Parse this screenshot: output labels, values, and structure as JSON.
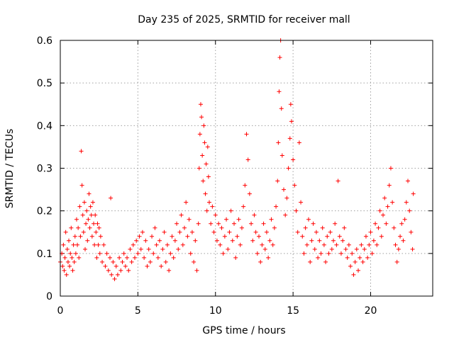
{
  "chart_data": {
    "type": "scatter",
    "title": "Day 235 of 2025, SRMTID for receiver mall",
    "xlabel": "GPS time / hours",
    "ylabel": "SRMTID / TECUs",
    "xlim": [
      0,
      24
    ],
    "ylim": [
      0,
      0.6
    ],
    "xticks": [
      0,
      5,
      10,
      15,
      20
    ],
    "yticks": [
      0,
      0.1,
      0.2,
      0.3,
      0.4,
      0.5,
      0.6
    ],
    "xtick_labels": [
      "0",
      "5",
      "10",
      "15",
      "20"
    ],
    "ytick_labels": [
      "0",
      "0.1",
      "0.2",
      "0.3",
      "0.4",
      "0.5",
      "0.6"
    ],
    "grid": true,
    "marker": "+",
    "color": "#ff0000",
    "series": [
      {
        "name": "SRMTID",
        "points": [
          [
            0.0,
            0.08
          ],
          [
            0.1,
            0.1
          ],
          [
            0.15,
            0.07
          ],
          [
            0.2,
            0.12
          ],
          [
            0.25,
            0.06
          ],
          [
            0.3,
            0.09
          ],
          [
            0.35,
            0.15
          ],
          [
            0.4,
            0.05
          ],
          [
            0.45,
            0.11
          ],
          [
            0.5,
            0.08
          ],
          [
            0.55,
            0.13
          ],
          [
            0.6,
            0.07
          ],
          [
            0.65,
            0.1
          ],
          [
            0.7,
            0.16
          ],
          [
            0.75,
            0.09
          ],
          [
            0.8,
            0.06
          ],
          [
            0.85,
            0.12
          ],
          [
            0.9,
            0.08
          ],
          [
            0.95,
            0.14
          ],
          [
            1.0,
            0.1
          ],
          [
            1.05,
            0.18
          ],
          [
            1.1,
            0.12
          ],
          [
            1.15,
            0.16
          ],
          [
            1.2,
            0.09
          ],
          [
            1.25,
            0.21
          ],
          [
            1.3,
            0.14
          ],
          [
            1.35,
            0.34
          ],
          [
            1.4,
            0.26
          ],
          [
            1.45,
            0.19
          ],
          [
            1.5,
            0.15
          ],
          [
            1.55,
            0.22
          ],
          [
            1.6,
            0.11
          ],
          [
            1.65,
            0.17
          ],
          [
            1.7,
            0.2
          ],
          [
            1.75,
            0.13
          ],
          [
            1.8,
            0.18
          ],
          [
            1.85,
            0.24
          ],
          [
            1.9,
            0.16
          ],
          [
            1.95,
            0.21
          ],
          [
            2.0,
            0.19
          ],
          [
            2.05,
            0.14
          ],
          [
            2.1,
            0.22
          ],
          [
            2.15,
            0.17
          ],
          [
            2.2,
            0.12
          ],
          [
            2.25,
            0.19
          ],
          [
            2.3,
            0.15
          ],
          [
            2.35,
            0.09
          ],
          [
            2.4,
            0.17
          ],
          [
            2.45,
            0.12
          ],
          [
            2.5,
            0.16
          ],
          [
            2.55,
            0.1
          ],
          [
            2.6,
            0.14
          ],
          [
            2.7,
            0.08
          ],
          [
            2.8,
            0.12
          ],
          [
            2.9,
            0.07
          ],
          [
            3.0,
            0.1
          ],
          [
            3.1,
            0.06
          ],
          [
            3.2,
            0.09
          ],
          [
            3.25,
            0.23
          ],
          [
            3.3,
            0.05
          ],
          [
            3.4,
            0.08
          ],
          [
            3.5,
            0.04
          ],
          [
            3.6,
            0.07
          ],
          [
            3.7,
            0.05
          ],
          [
            3.8,
            0.09
          ],
          [
            3.9,
            0.06
          ],
          [
            4.0,
            0.08
          ],
          [
            4.1,
            0.1
          ],
          [
            4.2,
            0.07
          ],
          [
            4.3,
            0.09
          ],
          [
            4.4,
            0.06
          ],
          [
            4.5,
            0.11
          ],
          [
            4.6,
            0.08
          ],
          [
            4.7,
            0.12
          ],
          [
            4.8,
            0.09
          ],
          [
            4.9,
            0.13
          ],
          [
            5.0,
            0.1
          ],
          [
            5.1,
            0.14
          ],
          [
            5.2,
            0.11
          ],
          [
            5.3,
            0.15
          ],
          [
            5.4,
            0.09
          ],
          [
            5.5,
            0.13
          ],
          [
            5.6,
            0.07
          ],
          [
            5.7,
            0.11
          ],
          [
            5.8,
            0.08
          ],
          [
            5.9,
            0.14
          ],
          [
            6.0,
            0.1
          ],
          [
            6.1,
            0.16
          ],
          [
            6.2,
            0.12
          ],
          [
            6.3,
            0.09
          ],
          [
            6.4,
            0.13
          ],
          [
            6.5,
            0.07
          ],
          [
            6.6,
            0.11
          ],
          [
            6.7,
            0.15
          ],
          [
            6.8,
            0.08
          ],
          [
            6.9,
            0.12
          ],
          [
            7.0,
            0.06
          ],
          [
            7.1,
            0.1
          ],
          [
            7.2,
            0.14
          ],
          [
            7.3,
            0.09
          ],
          [
            7.4,
            0.13
          ],
          [
            7.5,
            0.17
          ],
          [
            7.6,
            0.11
          ],
          [
            7.7,
            0.15
          ],
          [
            7.8,
            0.19
          ],
          [
            7.9,
            0.12
          ],
          [
            8.0,
            0.16
          ],
          [
            8.1,
            0.22
          ],
          [
            8.2,
            0.14
          ],
          [
            8.3,
            0.18
          ],
          [
            8.4,
            0.1
          ],
          [
            8.5,
            0.15
          ],
          [
            8.6,
            0.08
          ],
          [
            8.7,
            0.13
          ],
          [
            8.8,
            0.06
          ],
          [
            8.9,
            0.17
          ],
          [
            8.95,
            0.3
          ],
          [
            9.0,
            0.38
          ],
          [
            9.05,
            0.45
          ],
          [
            9.1,
            0.42
          ],
          [
            9.15,
            0.33
          ],
          [
            9.2,
            0.27
          ],
          [
            9.25,
            0.4
          ],
          [
            9.3,
            0.36
          ],
          [
            9.35,
            0.24
          ],
          [
            9.4,
            0.31
          ],
          [
            9.45,
            0.2
          ],
          [
            9.5,
            0.35
          ],
          [
            9.55,
            0.28
          ],
          [
            9.6,
            0.22
          ],
          [
            9.7,
            0.17
          ],
          [
            9.8,
            0.21
          ],
          [
            9.9,
            0.15
          ],
          [
            10.0,
            0.19
          ],
          [
            10.1,
            0.13
          ],
          [
            10.2,
            0.17
          ],
          [
            10.3,
            0.12
          ],
          [
            10.4,
            0.16
          ],
          [
            10.5,
            0.1
          ],
          [
            10.6,
            0.14
          ],
          [
            10.7,
            0.18
          ],
          [
            10.8,
            0.11
          ],
          [
            10.9,
            0.15
          ],
          [
            11.0,
            0.2
          ],
          [
            11.1,
            0.13
          ],
          [
            11.2,
            0.17
          ],
          [
            11.3,
            0.09
          ],
          [
            11.4,
            0.14
          ],
          [
            11.5,
            0.18
          ],
          [
            11.6,
            0.12
          ],
          [
            11.7,
            0.16
          ],
          [
            11.8,
            0.21
          ],
          [
            11.9,
            0.26
          ],
          [
            12.0,
            0.38
          ],
          [
            12.1,
            0.32
          ],
          [
            12.2,
            0.24
          ],
          [
            12.3,
            0.17
          ],
          [
            12.4,
            0.13
          ],
          [
            12.5,
            0.19
          ],
          [
            12.6,
            0.15
          ],
          [
            12.7,
            0.1
          ],
          [
            12.8,
            0.14
          ],
          [
            12.9,
            0.08
          ],
          [
            13.0,
            0.12
          ],
          [
            13.1,
            0.17
          ],
          [
            13.2,
            0.11
          ],
          [
            13.3,
            0.15
          ],
          [
            13.4,
            0.09
          ],
          [
            13.5,
            0.13
          ],
          [
            13.6,
            0.18
          ],
          [
            13.7,
            0.12
          ],
          [
            13.8,
            0.16
          ],
          [
            13.9,
            0.21
          ],
          [
            14.0,
            0.27
          ],
          [
            14.05,
            0.36
          ],
          [
            14.1,
            0.48
          ],
          [
            14.15,
            0.56
          ],
          [
            14.2,
            0.6
          ],
          [
            14.25,
            0.44
          ],
          [
            14.3,
            0.33
          ],
          [
            14.4,
            0.25
          ],
          [
            14.5,
            0.19
          ],
          [
            14.6,
            0.23
          ],
          [
            14.7,
            0.3
          ],
          [
            14.8,
            0.37
          ],
          [
            14.85,
            0.45
          ],
          [
            14.9,
            0.41
          ],
          [
            15.0,
            0.32
          ],
          [
            15.1,
            0.26
          ],
          [
            15.2,
            0.2
          ],
          [
            15.3,
            0.15
          ],
          [
            15.4,
            0.36
          ],
          [
            15.5,
            0.22
          ],
          [
            15.6,
            0.14
          ],
          [
            15.7,
            0.1
          ],
          [
            15.8,
            0.16
          ],
          [
            15.9,
            0.12
          ],
          [
            16.0,
            0.18
          ],
          [
            16.1,
            0.08
          ],
          [
            16.2,
            0.13
          ],
          [
            16.3,
            0.17
          ],
          [
            16.4,
            0.11
          ],
          [
            16.5,
            0.15
          ],
          [
            16.6,
            0.09
          ],
          [
            16.7,
            0.13
          ],
          [
            16.8,
            0.1
          ],
          [
            16.9,
            0.16
          ],
          [
            17.0,
            0.12
          ],
          [
            17.1,
            0.08
          ],
          [
            17.2,
            0.14
          ],
          [
            17.3,
            0.1
          ],
          [
            17.4,
            0.15
          ],
          [
            17.5,
            0.11
          ],
          [
            17.6,
            0.13
          ],
          [
            17.7,
            0.17
          ],
          [
            17.8,
            0.12
          ],
          [
            17.9,
            0.27
          ],
          [
            18.0,
            0.14
          ],
          [
            18.1,
            0.1
          ],
          [
            18.2,
            0.13
          ],
          [
            18.3,
            0.16
          ],
          [
            18.4,
            0.11
          ],
          [
            18.5,
            0.09
          ],
          [
            18.6,
            0.12
          ],
          [
            18.7,
            0.07
          ],
          [
            18.8,
            0.1
          ],
          [
            18.9,
            0.05
          ],
          [
            19.0,
            0.08
          ],
          [
            19.1,
            0.11
          ],
          [
            19.2,
            0.06
          ],
          [
            19.3,
            0.09
          ],
          [
            19.4,
            0.12
          ],
          [
            19.5,
            0.08
          ],
          [
            19.6,
            0.11
          ],
          [
            19.7,
            0.14
          ],
          [
            19.8,
            0.09
          ],
          [
            19.9,
            0.12
          ],
          [
            20.0,
            0.15
          ],
          [
            20.1,
            0.1
          ],
          [
            20.2,
            0.13
          ],
          [
            20.3,
            0.17
          ],
          [
            20.4,
            0.12
          ],
          [
            20.5,
            0.16
          ],
          [
            20.6,
            0.2
          ],
          [
            20.7,
            0.14
          ],
          [
            20.8,
            0.19
          ],
          [
            20.9,
            0.23
          ],
          [
            21.0,
            0.17
          ],
          [
            21.1,
            0.21
          ],
          [
            21.2,
            0.26
          ],
          [
            21.3,
            0.3
          ],
          [
            21.4,
            0.22
          ],
          [
            21.5,
            0.16
          ],
          [
            21.6,
            0.12
          ],
          [
            21.7,
            0.08
          ],
          [
            21.8,
            0.11
          ],
          [
            21.9,
            0.14
          ],
          [
            22.0,
            0.17
          ],
          [
            22.1,
            0.13
          ],
          [
            22.2,
            0.18
          ],
          [
            22.3,
            0.22
          ],
          [
            22.4,
            0.27
          ],
          [
            22.5,
            0.2
          ],
          [
            22.6,
            0.15
          ],
          [
            22.7,
            0.11
          ],
          [
            22.75,
            0.24
          ]
        ]
      }
    ]
  }
}
